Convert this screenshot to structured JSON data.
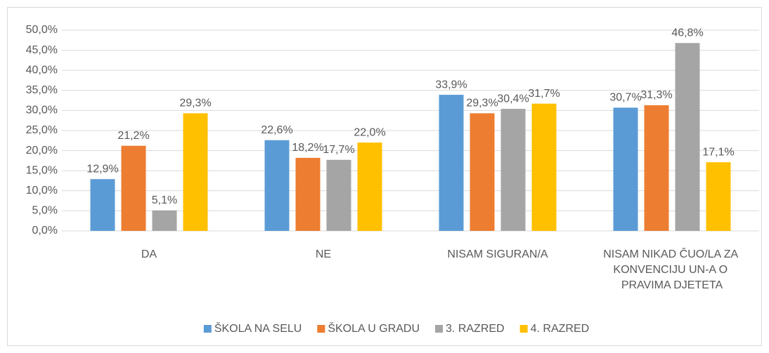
{
  "chart_data": {
    "type": "bar",
    "categories": [
      "DA",
      "NE",
      "NISAM SIGURAN/A",
      "NISAM NIKAD ČUO/LA ZA KONVENCIJU UN-A O PRAVIMA DJETETA"
    ],
    "series": [
      {
        "name": "ŠKOLA NA SELU",
        "color": "#5b9bd5",
        "values": [
          12.9,
          22.6,
          33.9,
          30.7
        ],
        "value_labels": [
          "12,9%",
          "22,6%",
          "33,9%",
          "30,7%"
        ]
      },
      {
        "name": "ŠKOLA U GRADU",
        "color": "#ed7d31",
        "values": [
          21.2,
          18.2,
          29.3,
          31.3
        ],
        "value_labels": [
          "21,2%",
          "18,2%",
          "29,3%",
          "31,3%"
        ]
      },
      {
        "name": "3. RAZRED",
        "color": "#a5a5a5",
        "values": [
          5.1,
          17.7,
          30.4,
          46.8
        ],
        "value_labels": [
          "5,1%",
          "17,7%",
          "30,4%",
          "46,8%"
        ]
      },
      {
        "name": "4. RAZRED",
        "color": "#ffc000",
        "values": [
          29.3,
          22.0,
          31.7,
          17.1
        ],
        "value_labels": [
          "29,3%",
          "22,0%",
          "31,7%",
          "17,1%"
        ]
      }
    ],
    "ylim": [
      0,
      50
    ],
    "yticks": [
      {
        "value": 0,
        "label": "0,0%"
      },
      {
        "value": 5,
        "label": "5,0%"
      },
      {
        "value": 10,
        "label": "10,0%"
      },
      {
        "value": 15,
        "label": "15,0%"
      },
      {
        "value": 20,
        "label": "20,0%"
      },
      {
        "value": 25,
        "label": "25,0%"
      },
      {
        "value": 30,
        "label": "30,0%"
      },
      {
        "value": 35,
        "label": "35,0%"
      },
      {
        "value": 40,
        "label": "40,0%"
      },
      {
        "value": 45,
        "label": "45,0%"
      },
      {
        "value": 50,
        "label": "50,0%"
      }
    ],
    "grid": true,
    "legend": "bottom"
  }
}
